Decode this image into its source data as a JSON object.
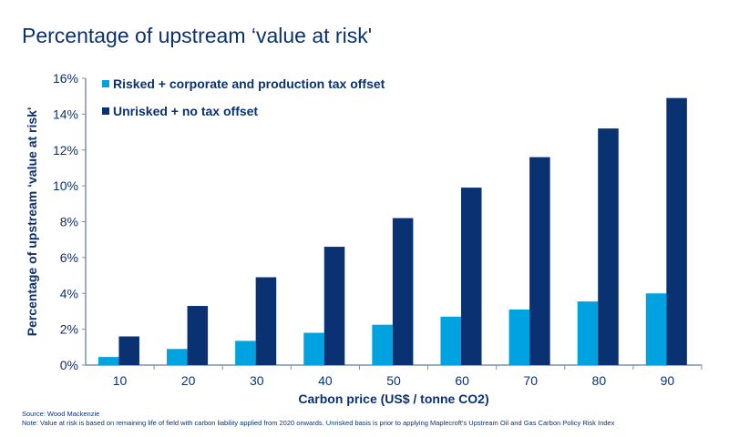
{
  "chart_data": {
    "type": "bar",
    "title": "Percentage of upstream ‘value at risk'",
    "xlabel": "Carbon price (US$ / tonne CO2)",
    "ylabel": "Percentage of upstream ‘value at risk'",
    "categories": [
      "10",
      "20",
      "30",
      "40",
      "50",
      "60",
      "70",
      "80",
      "90"
    ],
    "ylim": [
      0,
      16
    ],
    "yticks": [
      "0%",
      "2%",
      "4%",
      "6%",
      "8%",
      "10%",
      "12%",
      "14%",
      "16%"
    ],
    "grid": false,
    "legend_position": "top-left",
    "series": [
      {
        "name": "Risked + corporate and production tax offset",
        "color": "#00a3e0",
        "values": [
          0.45,
          0.9,
          1.35,
          1.8,
          2.25,
          2.7,
          3.1,
          3.55,
          4.0
        ]
      },
      {
        "name": "Unrisked + no tax offset",
        "color": "#0a3172",
        "values": [
          1.6,
          3.3,
          4.9,
          6.6,
          8.2,
          9.9,
          11.6,
          13.2,
          14.9
        ]
      }
    ]
  },
  "footer": {
    "source": "Source: Wood Mackenzie",
    "note": "Note: Value at risk is based on remaining life of field with carbon liability applied from 2020 onwards. Unrisked basis is prior to applying Maplecroft's Upstream Oil and Gas Carbon Policy Risk Index"
  }
}
